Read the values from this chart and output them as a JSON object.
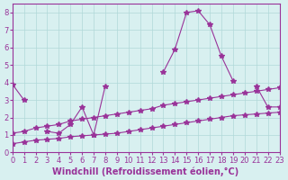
{
  "background_color": "#d8f0f0",
  "grid_color": "#b0d8d8",
  "line_color": "#993399",
  "marker": "*",
  "xlim": [
    0,
    23
  ],
  "ylim": [
    0,
    8.5
  ],
  "xticks": [
    0,
    1,
    2,
    3,
    4,
    5,
    6,
    7,
    8,
    9,
    10,
    11,
    12,
    13,
    14,
    15,
    16,
    17,
    18,
    19,
    20,
    21,
    22,
    23
  ],
  "yticks": [
    0,
    1,
    2,
    3,
    4,
    5,
    6,
    7,
    8
  ],
  "xlabel": "Windchill (Refroidissement éolien,°C)",
  "xlabel_color": "#993399",
  "xlabel_fontsize": 7,
  "tick_fontsize": 6,
  "tick_color": "#993399",
  "series1_x": [
    0,
    1,
    2,
    3,
    4,
    5,
    6,
    7,
    8,
    9,
    10,
    11,
    12,
    13,
    14,
    15,
    16,
    17,
    18,
    19,
    20,
    21,
    22,
    23
  ],
  "series1_y": [
    3.9,
    3.0,
    null,
    1.2,
    1.1,
    1.6,
    2.6,
    1.0,
    3.8,
    null,
    null,
    null,
    null,
    4.6,
    5.9,
    8.0,
    8.1,
    7.3,
    5.5,
    4.1,
    null,
    3.8,
    2.6,
    2.6
  ],
  "series2_x": [
    0,
    1,
    2,
    3,
    4,
    5,
    6,
    7,
    8,
    9,
    10,
    11,
    12,
    13,
    14,
    15,
    16,
    17,
    18,
    19,
    20,
    21,
    22,
    23
  ],
  "series2_y": [
    1.1,
    1.2,
    1.4,
    1.5,
    1.6,
    1.8,
    1.9,
    2.0,
    2.1,
    2.2,
    2.3,
    2.4,
    2.5,
    2.7,
    2.8,
    2.9,
    3.0,
    3.1,
    3.2,
    3.3,
    3.4,
    3.5,
    3.6,
    3.7
  ],
  "series3_x": [
    0,
    1,
    2,
    3,
    4,
    5,
    6,
    7,
    8,
    9,
    10,
    11,
    12,
    13,
    14,
    15,
    16,
    17,
    18,
    19,
    20,
    21,
    22,
    23
  ],
  "series3_y": [
    0.5,
    0.6,
    0.7,
    0.75,
    0.8,
    0.9,
    0.95,
    1.0,
    1.05,
    1.1,
    1.2,
    1.3,
    1.4,
    1.5,
    1.6,
    1.7,
    1.8,
    1.9,
    2.0,
    2.1,
    2.15,
    2.2,
    2.25,
    2.3
  ]
}
